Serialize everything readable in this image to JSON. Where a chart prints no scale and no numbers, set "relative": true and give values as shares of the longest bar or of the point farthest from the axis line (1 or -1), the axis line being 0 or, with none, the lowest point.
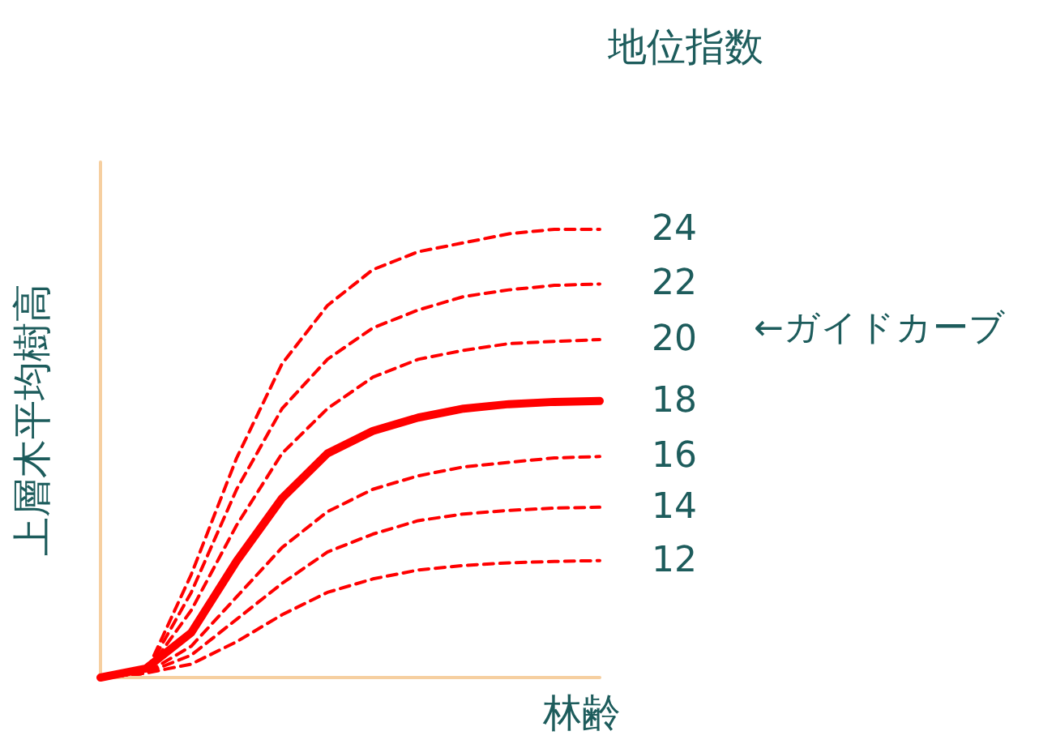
{
  "chart_data": {
    "type": "line",
    "relative": true,
    "title": "地位指数",
    "ylabel": "上層木平均樹高",
    "xlabel": "林齢",
    "annotations": [
      "←ガイドカーブ"
    ],
    "legend": false,
    "grid": false,
    "marker": "none",
    "categories": [
      null,
      null,
      null,
      null,
      null,
      null,
      null,
      null,
      null,
      null,
      null,
      null
    ],
    "series": [
      {
        "name": "24",
        "color": "#ff0000",
        "line_style": "dashed",
        "values": [
          0,
          0.01,
          0.23,
          0.49,
          0.7,
          0.83,
          0.91,
          0.95,
          0.97,
          0.99,
          1.0,
          1.0
        ]
      },
      {
        "name": "22",
        "color": "#ff0000",
        "line_style": "dashed",
        "values": [
          0,
          0.01,
          0.19,
          0.42,
          0.6,
          0.71,
          0.78,
          0.82,
          0.85,
          0.865,
          0.875,
          0.878
        ]
      },
      {
        "name": "20",
        "color": "#ff0000",
        "line_style": "dashed",
        "values": [
          0,
          0.01,
          0.15,
          0.34,
          0.5,
          0.6,
          0.67,
          0.71,
          0.73,
          0.745,
          0.75,
          0.754
        ]
      },
      {
        "name": "18",
        "color": "#ff0000",
        "line_style": "solid",
        "values": [
          0,
          0.02,
          0.1,
          0.26,
          0.4,
          0.5,
          0.55,
          0.58,
          0.6,
          0.61,
          0.615,
          0.617
        ]
      },
      {
        "name": "16",
        "color": "#ff0000",
        "line_style": "dashed",
        "values": [
          0,
          0.01,
          0.07,
          0.18,
          0.29,
          0.37,
          0.42,
          0.45,
          0.47,
          0.48,
          0.49,
          0.493
        ]
      },
      {
        "name": "14",
        "color": "#ff0000",
        "line_style": "dashed",
        "values": [
          0,
          0.01,
          0.05,
          0.13,
          0.21,
          0.28,
          0.32,
          0.35,
          0.365,
          0.373,
          0.378,
          0.38
        ]
      },
      {
        "name": "12",
        "color": "#ff0000",
        "line_style": "dashed",
        "values": [
          0,
          0.01,
          0.03,
          0.08,
          0.14,
          0.19,
          0.22,
          0.24,
          0.25,
          0.256,
          0.259,
          0.261
        ]
      }
    ]
  }
}
